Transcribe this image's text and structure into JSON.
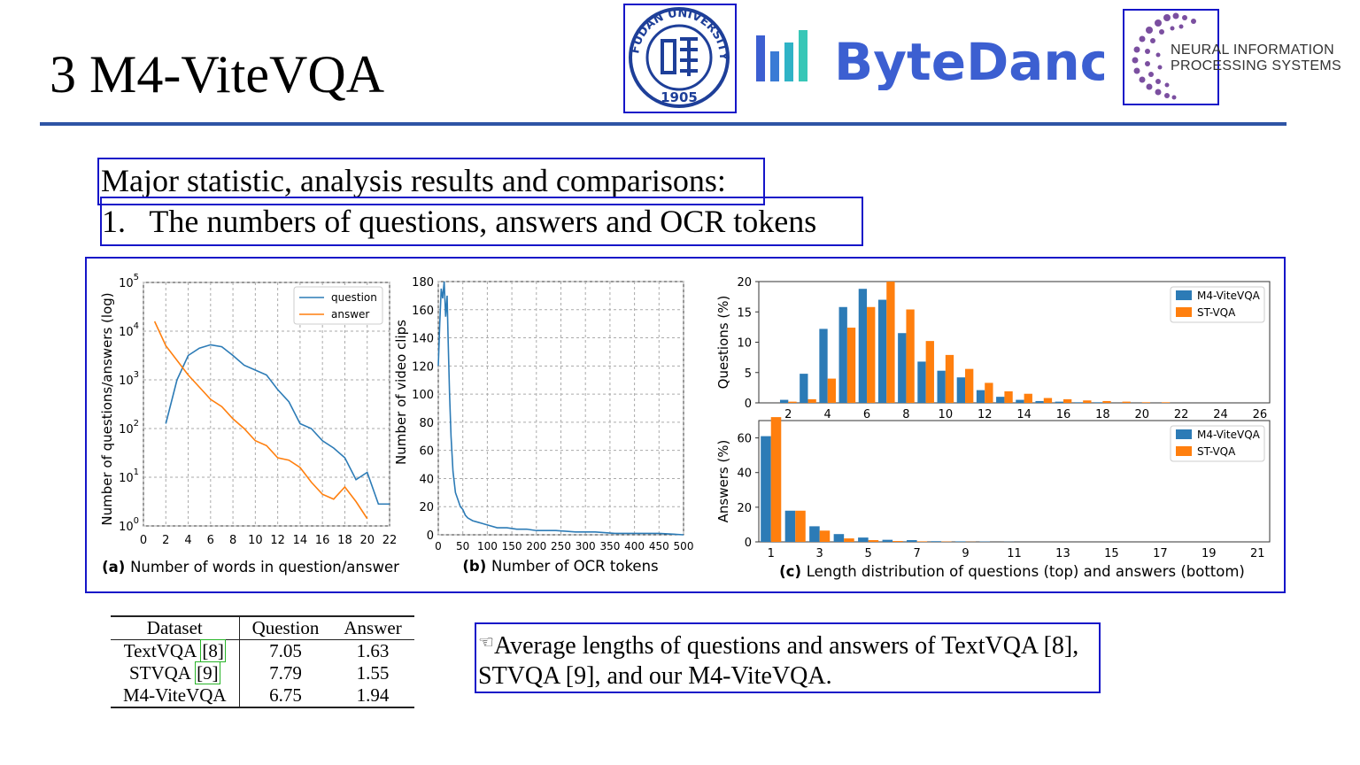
{
  "slide": {
    "title": "3 M4-ViteVQA",
    "heading": "Major statistic, analysis results and comparisons:",
    "list_item": "1.   The numbers of questions, answers and OCR tokens"
  },
  "logos": {
    "fudan_text": "FUDAN UNIVERSITY",
    "fudan_year": "1905",
    "bytedance": "ByteDance",
    "neurips_line1": "NEURAL INFORMATION",
    "neurips_line2": "PROCESSING SYSTEMS"
  },
  "colors": {
    "accent_rule": "#2e54a5",
    "box": "#1515c8",
    "series_blue": "#2c7bb6",
    "series_orange": "#ff7f0e"
  },
  "chart_data": [
    {
      "type": "line",
      "caption_prefix": "(a)",
      "caption": "Number of words in question/answer",
      "ylabel": "Number of questions/answers (log)",
      "yscale": "log",
      "ylim_exp": [
        0,
        5
      ],
      "x_ticks": [
        "0",
        "2",
        "4",
        "6",
        "8",
        "10",
        "12",
        "14",
        "16",
        "18",
        "20",
        "22"
      ],
      "y_ticks": [
        "10^0",
        "10^1",
        "10^2",
        "10^3",
        "10^4",
        "10^5"
      ],
      "legend": [
        "question",
        "answer"
      ],
      "series": [
        {
          "name": "question",
          "x": [
            2,
            3,
            4,
            5,
            6,
            7,
            8,
            9,
            10,
            11,
            12,
            13,
            14,
            15,
            16,
            17,
            18,
            19,
            20,
            21,
            22
          ],
          "log10_y": [
            2.1,
            3.0,
            3.5,
            3.65,
            3.72,
            3.68,
            3.5,
            3.3,
            3.2,
            3.1,
            2.8,
            2.55,
            2.1,
            2.0,
            1.75,
            1.6,
            1.4,
            0.95,
            1.1,
            0.45,
            0.45
          ]
        },
        {
          "name": "answer",
          "x": [
            1,
            2,
            3,
            4,
            5,
            6,
            7,
            8,
            9,
            10,
            11,
            12,
            13,
            14,
            15,
            16,
            17,
            18,
            19,
            20
          ],
          "log10_y": [
            4.2,
            3.7,
            3.4,
            3.1,
            2.85,
            2.6,
            2.45,
            2.2,
            2.0,
            1.75,
            1.65,
            1.4,
            1.35,
            1.2,
            0.9,
            0.65,
            0.55,
            0.8,
            0.5,
            0.15
          ]
        }
      ]
    },
    {
      "type": "line",
      "caption_prefix": "(b)",
      "caption": "Number of OCR tokens",
      "ylabel": "Number of video clips",
      "ylim": [
        0,
        180
      ],
      "x_ticks": [
        "0",
        "50",
        "100",
        "150",
        "200",
        "250",
        "300",
        "350",
        "400",
        "450",
        "500"
      ],
      "y_ticks": [
        "0",
        "20",
        "40",
        "60",
        "80",
        "100",
        "120",
        "140",
        "160",
        "180"
      ],
      "series": [
        {
          "name": "clips",
          "x": [
            0,
            3,
            6,
            9,
            12,
            15,
            18,
            20,
            23,
            26,
            30,
            35,
            40,
            45,
            50,
            55,
            60,
            70,
            80,
            90,
            100,
            120,
            140,
            160,
            180,
            200,
            240,
            280,
            320,
            360,
            400,
            450,
            500
          ],
          "y": [
            120,
            150,
            175,
            168,
            180,
            155,
            170,
            140,
            100,
            70,
            45,
            30,
            25,
            20,
            18,
            14,
            12,
            10,
            9,
            8,
            7,
            5,
            5,
            4,
            4,
            3,
            3,
            2,
            2,
            1,
            1,
            1,
            0
          ]
        }
      ]
    },
    {
      "type": "bar",
      "caption_prefix": "(c)",
      "caption": "Length distribution of questions (top) and answers (bottom)",
      "panels": [
        {
          "ylabel": "Questions (%)",
          "ylim": [
            0,
            20
          ],
          "y_ticks": [
            "0",
            "5",
            "10",
            "15",
            "20"
          ],
          "x_ticks": [
            "2",
            "4",
            "6",
            "8",
            "10",
            "12",
            "14",
            "16",
            "18",
            "20",
            "22",
            "24",
            "26"
          ],
          "categories": [
            1,
            2,
            3,
            4,
            5,
            6,
            7,
            8,
            9,
            10,
            11,
            12,
            13,
            14,
            15,
            16,
            17,
            18,
            19,
            20,
            21,
            22,
            23,
            24,
            25,
            26
          ],
          "series": [
            {
              "name": "M4-ViteVQA",
              "values": [
                0,
                0.5,
                4.8,
                12.2,
                15.8,
                18.8,
                17,
                11.5,
                6.8,
                5.3,
                4.2,
                2.1,
                1,
                0.5,
                0.3,
                0.2,
                0.1,
                0.1,
                0,
                0,
                0,
                0,
                0,
                0,
                0,
                0
              ]
            },
            {
              "name": "ST-VQA",
              "values": [
                0,
                0.2,
                0.6,
                4,
                12.4,
                15.8,
                20,
                15.4,
                10.2,
                7.9,
                5.6,
                3.3,
                1.9,
                1.5,
                0.8,
                0.6,
                0.4,
                0.3,
                0.2,
                0.1,
                0.1,
                0,
                0,
                0,
                0,
                0
              ]
            }
          ]
        },
        {
          "ylabel": "Answers (%)",
          "ylim": [
            0,
            70
          ],
          "y_ticks": [
            "0",
            "20",
            "40",
            "60"
          ],
          "x_ticks": [
            "1",
            "3",
            "5",
            "7",
            "9",
            "11",
            "13",
            "15",
            "17",
            "19",
            "21"
          ],
          "categories": [
            1,
            2,
            3,
            4,
            5,
            6,
            7,
            8,
            9,
            10,
            11,
            12,
            13,
            14,
            15,
            16,
            17,
            18,
            19,
            20,
            21
          ],
          "series": [
            {
              "name": "M4-ViteVQA",
              "values": [
                61,
                18,
                9,
                4.5,
                2.5,
                1.2,
                1,
                0.4,
                0.3,
                0.2,
                0.1,
                0,
                0,
                0,
                0,
                0,
                0,
                0,
                0,
                0,
                0
              ]
            },
            {
              "name": "ST-VQA",
              "values": [
                72,
                18,
                6.5,
                2,
                1,
                0.5,
                0.3,
                0.2,
                0.1,
                0,
                0,
                0,
                0,
                0,
                0,
                0,
                0,
                0,
                0,
                0,
                0
              ]
            }
          ]
        }
      ]
    }
  ],
  "table": {
    "headers": [
      "Dataset",
      "Question",
      "Answer"
    ],
    "rows": [
      {
        "dataset": "TextVQA",
        "cite": "[8]",
        "question": "7.05",
        "answer": "1.63"
      },
      {
        "dataset": "STVQA",
        "cite": "[9]",
        "question": "7.79",
        "answer": "1.55"
      },
      {
        "dataset": "M4-ViteVQA",
        "cite": "",
        "question": "6.75",
        "answer": "1.94"
      }
    ]
  },
  "note": {
    "icon": "pointing-hand-icon",
    "text": "Average lengths of questions and answers of TextVQA [8], STVQA [9], and our M4-ViteVQA."
  }
}
